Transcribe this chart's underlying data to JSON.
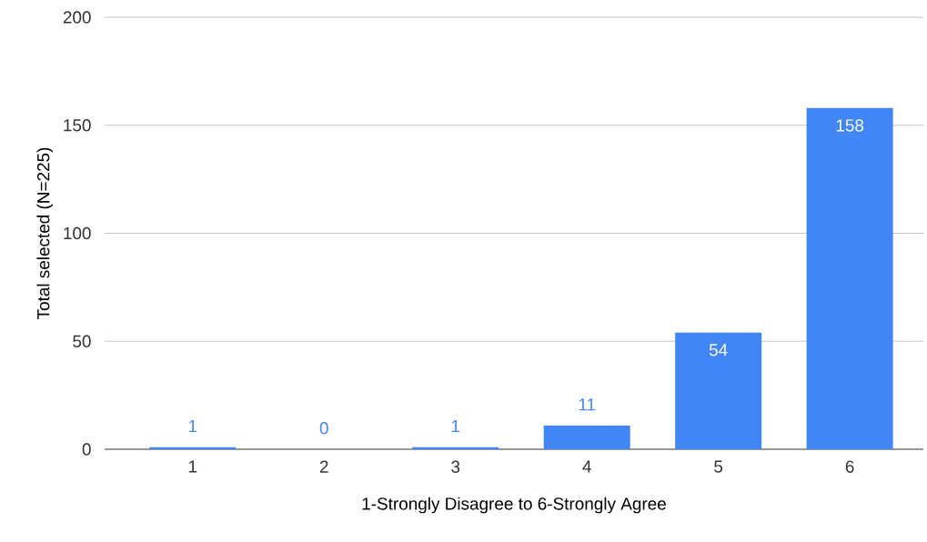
{
  "chart_data": {
    "type": "bar",
    "xlabel": "1-Strongly Disagree to 6-Strongly Agree",
    "ylabel": "Total selected (N=225)",
    "categories": [
      "1",
      "2",
      "3",
      "4",
      "5",
      "6"
    ],
    "values": [
      1,
      0,
      1,
      11,
      54,
      158
    ],
    "color": "#4285f4",
    "data_labels": true,
    "grid": "y",
    "ylim": [
      0,
      200
    ],
    "yticks": [
      0,
      50,
      100,
      150,
      200
    ]
  }
}
